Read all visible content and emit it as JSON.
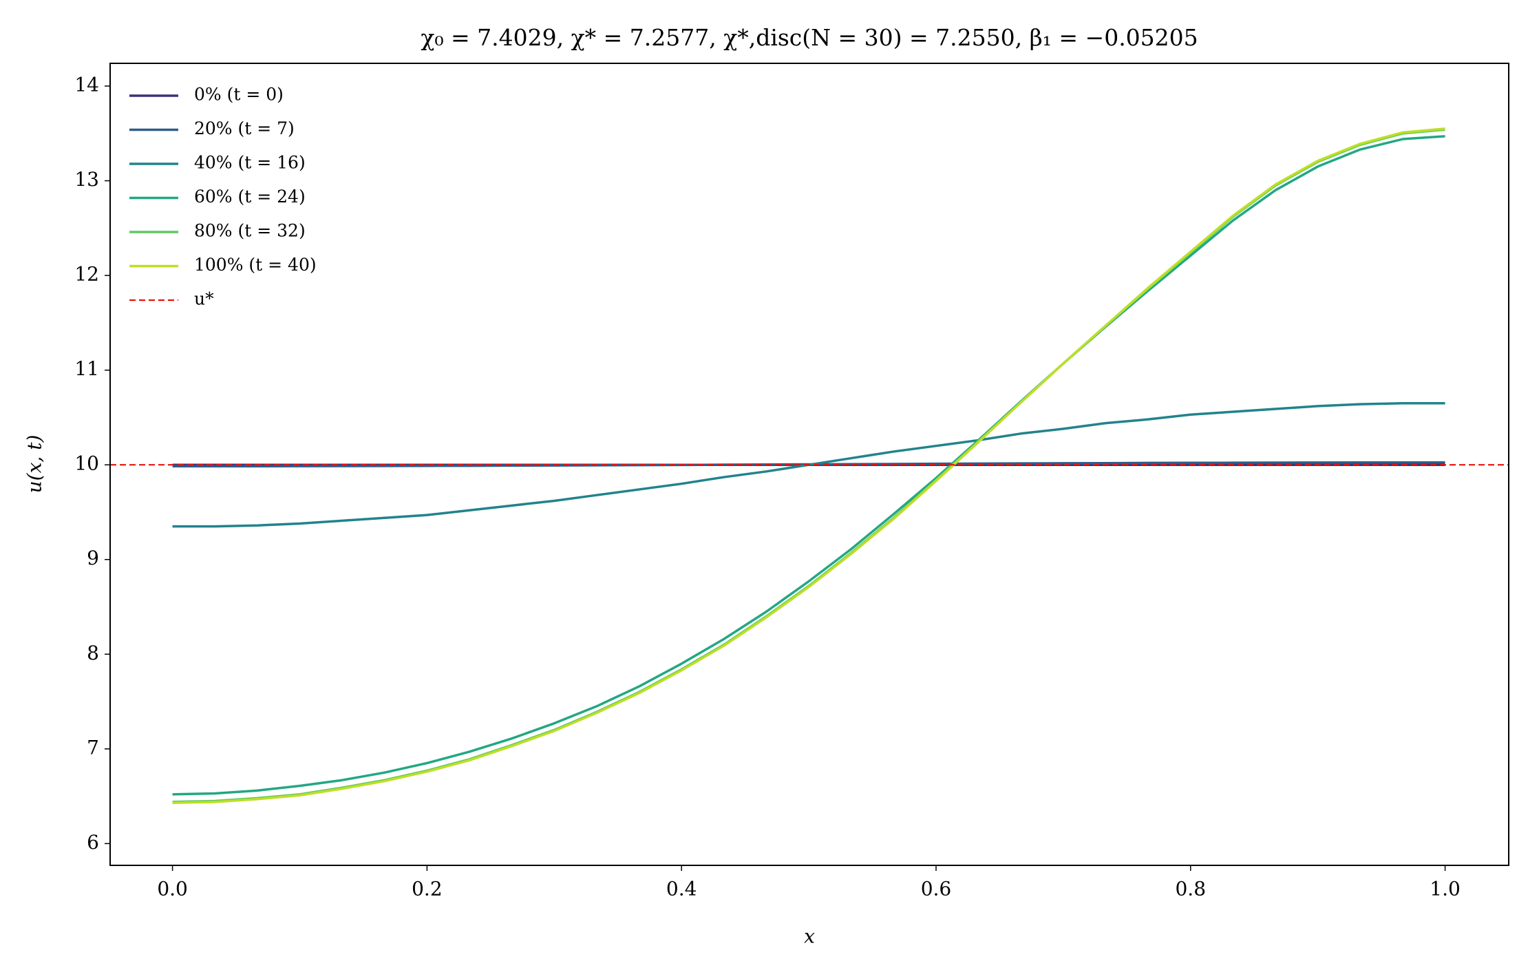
{
  "chart_data": {
    "type": "line",
    "title": "χ₀ = 7.4029,  χ* = 7.2577,  χ*,disc(N = 30) = 7.2550,  β₁ = −0.05205",
    "x_label": "x",
    "y_label": "u(x, t)",
    "x": [
      0,
      0.0333,
      0.0667,
      0.1,
      0.1333,
      0.1667,
      0.2,
      0.2333,
      0.2667,
      0.3,
      0.3333,
      0.3667,
      0.4,
      0.4333,
      0.4667,
      0.5,
      0.5333,
      0.5667,
      0.6,
      0.6333,
      0.6667,
      0.7,
      0.7333,
      0.7667,
      0.8,
      0.8333,
      0.8667,
      0.9,
      0.9333,
      0.9667,
      1
    ],
    "series": [
      {
        "name": "0% (t = 0)",
        "color": "#3b3178",
        "values": [
          10,
          10,
          10,
          10,
          10,
          10,
          10,
          10,
          10,
          10,
          10,
          10,
          10,
          10,
          10,
          10,
          10,
          10,
          10,
          10,
          10,
          10,
          10,
          10,
          10,
          10,
          10,
          10,
          10,
          10,
          10
        ]
      },
      {
        "name": "20% (t = 7)",
        "color": "#2f5d8a",
        "values": [
          9.985,
          9.985,
          9.985,
          9.986,
          9.987,
          9.988,
          9.989,
          9.99,
          9.992,
          9.993,
          9.995,
          9.997,
          9.999,
          10.001,
          10.003,
          10.005,
          10.007,
          10.009,
          10.011,
          10.013,
          10.015,
          10.017,
          10.018,
          10.02,
          10.021,
          10.022,
          10.023,
          10.024,
          10.025,
          10.025,
          10.025
        ]
      },
      {
        "name": "40% (t = 16)",
        "color": "#21838c",
        "values": [
          9.35,
          9.35,
          9.36,
          9.38,
          9.41,
          9.44,
          9.47,
          9.52,
          9.57,
          9.62,
          9.68,
          9.74,
          9.8,
          9.87,
          9.93,
          10,
          10.07,
          10.14,
          10.2,
          10.26,
          10.33,
          10.38,
          10.44,
          10.48,
          10.53,
          10.56,
          10.59,
          10.62,
          10.64,
          10.65,
          10.65
        ]
      },
      {
        "name": "60% (t = 24)",
        "color": "#22a782",
        "values": [
          6.52,
          6.53,
          6.56,
          6.61,
          6.67,
          6.75,
          6.85,
          6.97,
          7.11,
          7.27,
          7.45,
          7.66,
          7.9,
          8.16,
          8.45,
          8.77,
          9.11,
          9.48,
          9.86,
          10.26,
          10.67,
          11.07,
          11.46,
          11.84,
          12.21,
          12.58,
          12.9,
          13.15,
          13.33,
          13.44,
          13.47
        ]
      },
      {
        "name": "80% (t = 32)",
        "color": "#5ec962",
        "values": [
          6.44,
          6.45,
          6.48,
          6.52,
          6.59,
          6.67,
          6.77,
          6.89,
          7.04,
          7.2,
          7.39,
          7.6,
          7.84,
          8.1,
          8.4,
          8.72,
          9.07,
          9.44,
          9.84,
          10.25,
          10.66,
          11.07,
          11.47,
          11.86,
          12.24,
          12.62,
          12.95,
          13.2,
          13.38,
          13.5,
          13.54
        ]
      },
      {
        "name": "100% (t = 40)",
        "color": "#bddf26",
        "values": [
          6.43,
          6.44,
          6.47,
          6.51,
          6.58,
          6.66,
          6.76,
          6.88,
          7.03,
          7.19,
          7.38,
          7.59,
          7.83,
          8.09,
          8.39,
          8.71,
          9.06,
          9.43,
          9.83,
          10.24,
          10.66,
          11.07,
          11.47,
          11.87,
          12.25,
          12.63,
          12.96,
          13.21,
          13.39,
          13.51,
          13.55
        ]
      }
    ],
    "reference": {
      "name": "u*",
      "value": 10,
      "color": "#e8120c"
    },
    "xlim": [
      -0.049,
      1.05
    ],
    "ylim": [
      5.77,
      14.24
    ],
    "xticks": [
      {
        "value": 0,
        "label": "0.0"
      },
      {
        "value": 0.2,
        "label": "0.2"
      },
      {
        "value": 0.4,
        "label": "0.4"
      },
      {
        "value": 0.6,
        "label": "0.6"
      },
      {
        "value": 0.8,
        "label": "0.8"
      },
      {
        "value": 1,
        "label": "1.0"
      }
    ],
    "yticks": [
      6,
      7,
      8,
      9,
      10,
      11,
      12,
      13,
      14
    ],
    "legend": "upper left",
    "grid": false
  }
}
